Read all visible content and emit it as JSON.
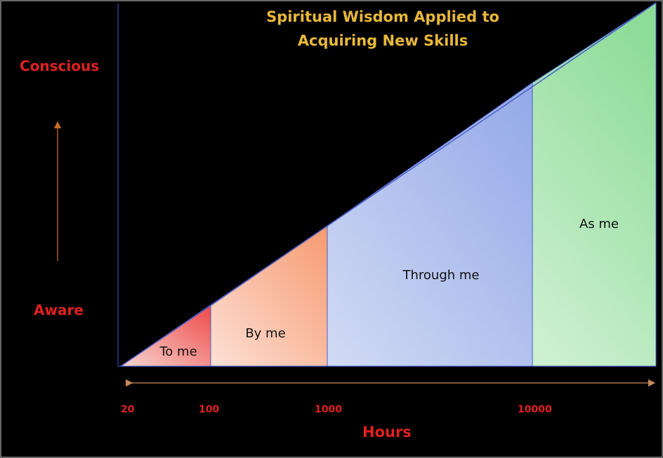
{
  "title": {
    "line1": "Spiritual Wisdom Applied to",
    "line2": "Acquiring New Skills"
  },
  "y_axis": {
    "top_label": "Conscious",
    "bottom_label": "Aware"
  },
  "x_axis": {
    "label": "Hours",
    "ticks": [
      "20",
      "100",
      "1000",
      "10000"
    ]
  },
  "regions": [
    {
      "label": "To me",
      "color_start": "#ee4a4a",
      "color_end": "#f8d6d0"
    },
    {
      "label": "By me",
      "color_start": "#f69a70",
      "color_end": "#fde0d6"
    },
    {
      "label": "Through me",
      "color_start": "#93a8e8",
      "color_end": "#d2dbf4"
    },
    {
      "label": "As me",
      "color_start": "#8ddc98",
      "color_end": "#cbefcf"
    }
  ],
  "colors": {
    "background": "#000000",
    "title": "#e8b83a",
    "axis_text": "#e0201f",
    "x_arrow": "#c98a5a",
    "y_arrow": "#c96a20",
    "outline": "#4a5fc8"
  }
}
